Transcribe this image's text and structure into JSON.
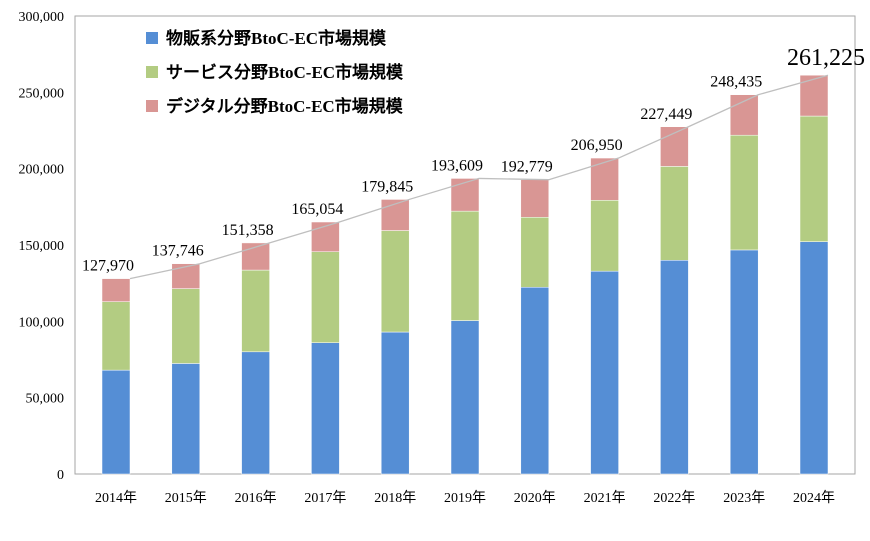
{
  "chart_data": {
    "type": "bar",
    "stacked": true,
    "categories": [
      "2014年",
      "2015年",
      "2016年",
      "2017年",
      "2018年",
      "2019年",
      "2020年",
      "2021年",
      "2022年",
      "2023年",
      "2024年"
    ],
    "series": [
      {
        "name": "物販系分野BtoC-EC市場規模",
        "color": "#558ed5",
        "values": [
          68043,
          72398,
          80043,
          86008,
          92992,
          100515,
          122333,
          132865,
          139997,
          146760,
          152194
        ]
      },
      {
        "name": "サービス分野BtoC-EC市場規模",
        "color": "#b3cc82",
        "values": [
          44816,
          49014,
          53532,
          59568,
          66471,
          71672,
          45832,
          46424,
          61477,
          75169,
          82266
        ]
      },
      {
        "name": "デジタル分野BtoC-EC市場規模",
        "color": "#d99694",
        "values": [
          15111,
          16334,
          17783,
          19478,
          20382,
          21422,
          24614,
          27661,
          25975,
          26506,
          26765
        ]
      }
    ],
    "totals": [
      "127,970",
      "137,746",
      "151,358",
      "165,054",
      "179,845",
      "193,609",
      "192,779",
      "206,950",
      "227,449",
      "248,435",
      "261,225"
    ],
    "total_values": [
      127970,
      137746,
      151358,
      165054,
      179845,
      193609,
      192779,
      206950,
      227449,
      248435,
      261225
    ],
    "ylim": [
      0,
      300000
    ],
    "yticks": [
      "0",
      "50,000",
      "100,000",
      "150,000",
      "200,000",
      "250,000",
      "300,000"
    ],
    "ytick_values": [
      0,
      50000,
      100000,
      150000,
      200000,
      250000,
      300000
    ],
    "grid": false,
    "legend": "top-left",
    "total_line_color": "#bfbfbf"
  }
}
